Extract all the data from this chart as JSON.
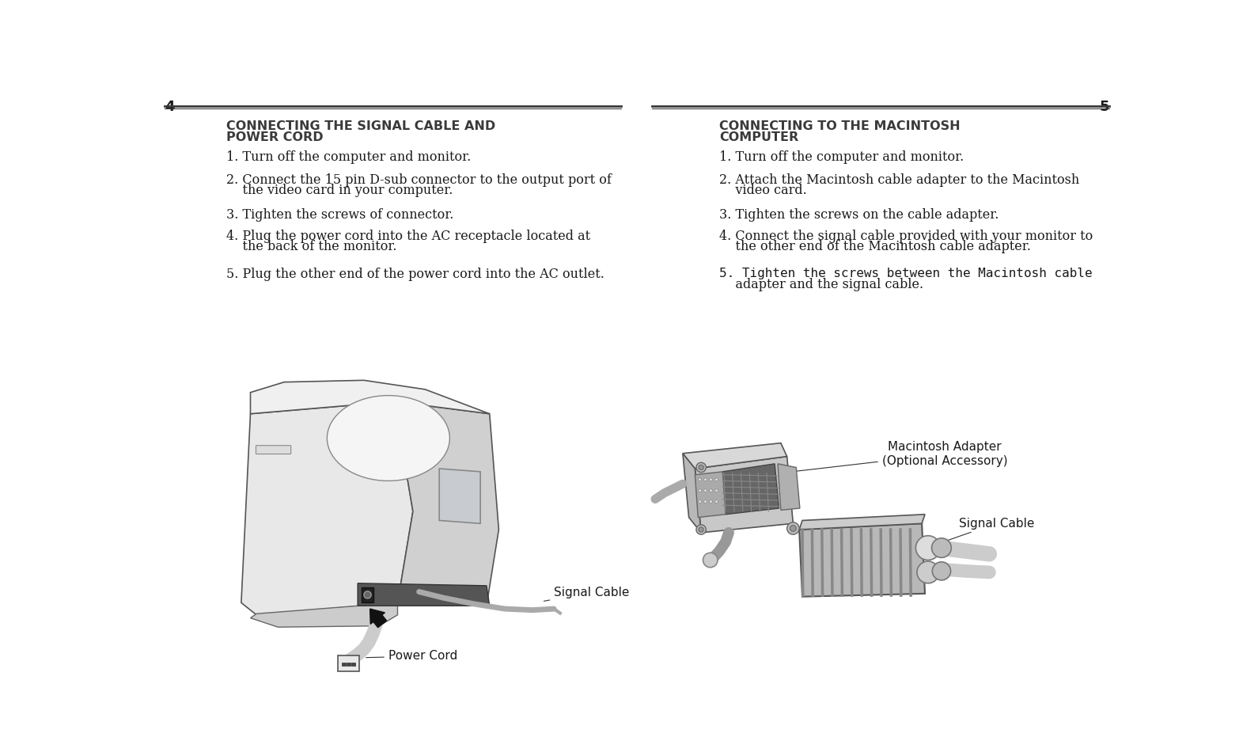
{
  "bg_color": "#ffffff",
  "page_num_left": "4",
  "page_num_right": "5",
  "left_title_line1": "CONNECTING THE SIGNAL CABLE AND",
  "left_title_line2": "POWER CORD",
  "right_title_line1": "CONNECTING TO THE MACINTOSH",
  "right_title_line2": "COMPUTER",
  "label_signal_cable_left": "Signal Cable",
  "label_power_cord": "Power Cord",
  "label_macintosh_adapter": "Macintosh Adapter\n(Optional Accessory)",
  "label_signal_cable_right": "Signal Cable",
  "title_color": "#3a3a3a",
  "text_color": "#1a1a1a",
  "label_color": "#1a1a1a",
  "line_color": "#3a3a3a",
  "left_step1": "1. Turn off the computer and monitor.",
  "left_step2a": "2. Connect the 15 pin D-sub connector to the output port of",
  "left_step2b": "    the video card in your computer.",
  "left_step3": "3. Tighten the screws of connector.",
  "left_step4a": "4. Plug the power cord into the AC receptacle located at",
  "left_step4b": "    the back of the monitor.",
  "left_step5": "5. Plug the other end of the power cord into the AC outlet.",
  "right_step1": "1. Turn off the computer and monitor.",
  "right_step2a": "2. Attach the Macintosh cable adapter to the Macintosh",
  "right_step2b": "    video card.",
  "right_step3": "3. Tighten the screws on the cable adapter.",
  "right_step4a": "4. Connect the signal cable provided with your monitor to",
  "right_step4b": "    the other end of the Macintosh cable adapter.",
  "right_step5a": "5. Tighten the screws between the Macintosh cable",
  "right_step5b": "    adapter and the signal cable."
}
